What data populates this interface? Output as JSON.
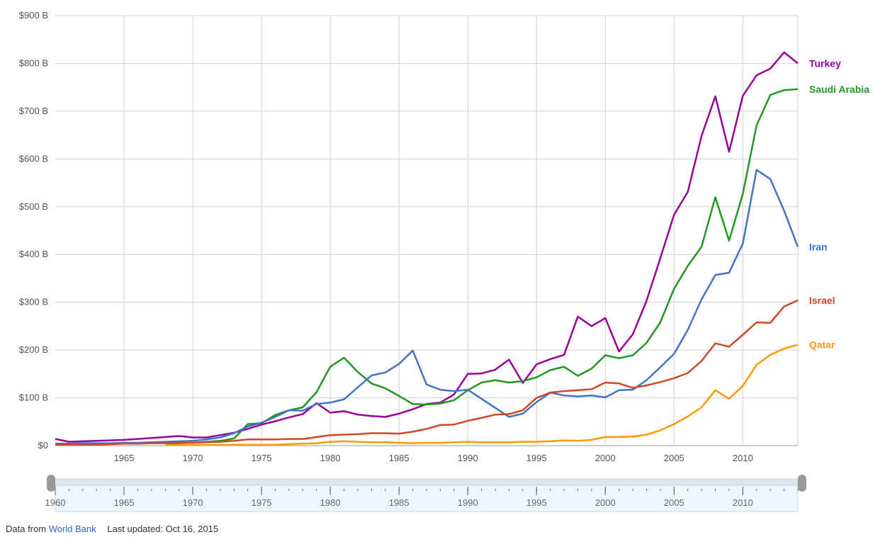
{
  "chart_data": {
    "type": "line",
    "title": "",
    "xlabel": "",
    "ylabel": "",
    "xlim": [
      1960,
      2014
    ],
    "ylim": [
      0,
      900
    ],
    "y_ticks": [
      {
        "value": 0,
        "label": "$0"
      },
      {
        "value": 100,
        "label": "$100 B"
      },
      {
        "value": 200,
        "label": "$200 B"
      },
      {
        "value": 300,
        "label": "$300 B"
      },
      {
        "value": 400,
        "label": "$400 B"
      },
      {
        "value": 500,
        "label": "$500 B"
      },
      {
        "value": 600,
        "label": "$600 B"
      },
      {
        "value": 700,
        "label": "$700 B"
      },
      {
        "value": 800,
        "label": "$800 B"
      },
      {
        "value": 900,
        "label": "$900 B"
      }
    ],
    "x_ticks": [
      1965,
      1970,
      1975,
      1980,
      1985,
      1990,
      1995,
      2000,
      2005,
      2010
    ],
    "grid": true,
    "legend": "end-of-line labels",
    "series": [
      {
        "name": "Turkey",
        "color": "#990099",
        "start": 1960,
        "values": [
          14,
          8,
          9,
          10,
          11,
          12,
          14,
          16,
          18,
          20,
          17,
          17,
          22,
          27,
          35,
          44,
          51,
          59,
          66,
          89,
          69,
          72,
          65,
          62,
          60,
          67,
          76,
          87,
          90,
          107,
          150,
          151,
          159,
          180,
          131,
          170,
          181,
          190,
          270,
          250,
          267,
          197,
          233,
          303,
          392,
          483,
          531,
          648,
          731,
          615,
          732,
          775,
          789,
          823,
          800
        ]
      },
      {
        "name": "Saudi Arabia",
        "color": "#219821",
        "start": 1968,
        "values": [
          5,
          6,
          6,
          8,
          10,
          15,
          45,
          47,
          64,
          74,
          80,
          112,
          165,
          184,
          154,
          130,
          120,
          104,
          87,
          86,
          88,
          95,
          116,
          132,
          137,
          132,
          135,
          143,
          158,
          165,
          146,
          161,
          189,
          183,
          189,
          215,
          258,
          328,
          376,
          416,
          520,
          429,
          527,
          670,
          734,
          744,
          746
        ]
      },
      {
        "name": "Iran",
        "color": "#4472c4",
        "start": 1960,
        "values": [
          4,
          4,
          5,
          5,
          5,
          6,
          6,
          7,
          8,
          9,
          10,
          13,
          17,
          26,
          40,
          48,
          60,
          74,
          73,
          87,
          90,
          97,
          122,
          147,
          153,
          171,
          199,
          128,
          117,
          114,
          117,
          98,
          79,
          60,
          67,
          91,
          111,
          105,
          103,
          105,
          101,
          116,
          117,
          137,
          164,
          192,
          242,
          306,
          357,
          362,
          423,
          577,
          558,
          492,
          416
        ]
      },
      {
        "name": "Israel",
        "color": "#d24726",
        "start": 1960,
        "values": [
          2,
          2,
          2,
          2,
          3,
          4,
          4,
          5,
          5,
          5,
          6,
          7,
          8,
          10,
          13,
          13,
          13,
          14,
          14,
          18,
          22,
          23,
          24,
          26,
          26,
          25,
          29,
          35,
          43,
          44,
          52,
          58,
          65,
          66,
          74,
          100,
          111,
          114,
          116,
          118,
          132,
          130,
          121,
          126,
          133,
          141,
          152,
          177,
          214,
          207,
          232,
          258,
          257,
          291,
          304
        ]
      },
      {
        "name": "Qatar",
        "color": "#ff9900",
        "start": 1968,
        "values": [
          1,
          1,
          1,
          1,
          1,
          2,
          2,
          2,
          2,
          3,
          4,
          5,
          8,
          9,
          8,
          7,
          7,
          6,
          5,
          6,
          6,
          7,
          8,
          7,
          7,
          7,
          8,
          8,
          9,
          11,
          10,
          12,
          18,
          18,
          19,
          23,
          32,
          45,
          61,
          80,
          116,
          98,
          125,
          169,
          190,
          203,
          211
        ]
      }
    ]
  },
  "range_selector": {
    "tick_labels": [
      {
        "year": 1960,
        "label": "1960"
      },
      {
        "year": 1965,
        "label": "1965"
      },
      {
        "year": 1970,
        "label": "1970"
      },
      {
        "year": 1975,
        "label": "1975"
      },
      {
        "year": 1980,
        "label": "1980"
      },
      {
        "year": 1985,
        "label": "1985"
      },
      {
        "year": 1990,
        "label": "1990"
      },
      {
        "year": 1995,
        "label": "1995"
      },
      {
        "year": 2000,
        "label": "2000"
      },
      {
        "year": 2005,
        "label": "2005"
      },
      {
        "year": 2010,
        "label": "2010"
      }
    ],
    "selected_range": [
      1960,
      2014
    ]
  },
  "footer": {
    "source_prefix": "Data from",
    "source_link": "World Bank",
    "last_updated": "Last updated: Oct 16, 2015"
  }
}
